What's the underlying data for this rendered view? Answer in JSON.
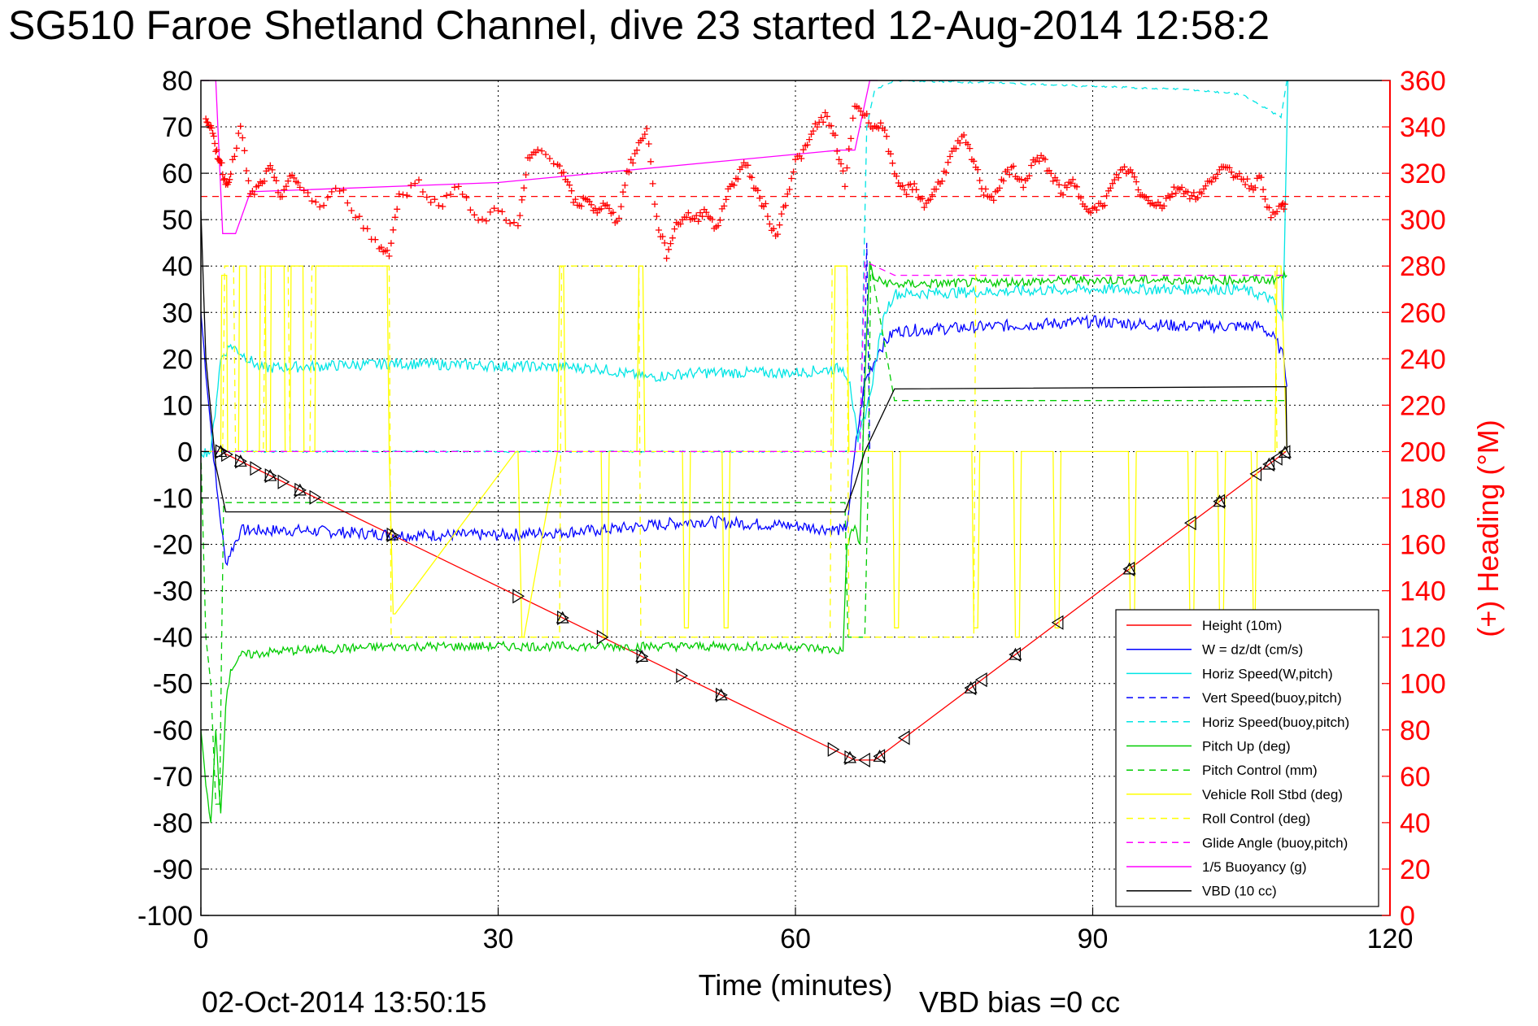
{
  "chart_data": {
    "type": "line",
    "title": "SG510 Faroe Shetland Channel, dive 23 started 12-Aug-2014 12:58:2",
    "xlabel": "Time (minutes)",
    "ylabel_right": "(+) Heading (°M)",
    "footer_date": "02-Oct-2014 13:50:15",
    "footer_note": "VBD bias =0 cc",
    "xlim": [
      0,
      120
    ],
    "ylim_left": [
      -100,
      80
    ],
    "ylim_right": [
      0,
      360
    ],
    "x_ticks": [
      "0",
      "30",
      "60",
      "90",
      "120"
    ],
    "y_ticks_left": [
      "80",
      "70",
      "60",
      "50",
      "40",
      "30",
      "20",
      "10",
      "0",
      "-10",
      "-20",
      "-30",
      "-40",
      "-50",
      "-60",
      "-70",
      "-80",
      "-90",
      "-100"
    ],
    "y_ticks_right": [
      "360",
      "340",
      "320",
      "300",
      "280",
      "260",
      "240",
      "220",
      "200",
      "180",
      "160",
      "140",
      "120",
      "100",
      "80",
      "60",
      "40",
      "20",
      "0"
    ],
    "grid": true,
    "legend_position": "bottom-right",
    "legend": [
      {
        "label": "Height (10m)",
        "color": "#ff0000",
        "style": "solid"
      },
      {
        "label": "W = dz/dt (cm/s)",
        "color": "#0000ff",
        "style": "solid"
      },
      {
        "label": "Horiz Speed(W,pitch)",
        "color": "#00e5e5",
        "style": "solid"
      },
      {
        "label": "Vert Speed(buoy,pitch)",
        "color": "#0000ff",
        "style": "dashed"
      },
      {
        "label": "Horiz Speed(buoy,pitch)",
        "color": "#00e5e5",
        "style": "dashed"
      },
      {
        "label": "Pitch Up (deg)",
        "color": "#00cc00",
        "style": "solid"
      },
      {
        "label": "Pitch Control (mm)",
        "color": "#00cc00",
        "style": "dashed"
      },
      {
        "label": "Vehicle Roll Stbd (deg)",
        "color": "#ffff00",
        "style": "solid"
      },
      {
        "label": "Roll Control (deg)",
        "color": "#ffff00",
        "style": "dashed"
      },
      {
        "label": "Glide Angle (buoy,pitch)",
        "color": "#ff00ff",
        "style": "dashed"
      },
      {
        "label": "1/5 Buoyancy (g)",
        "color": "#ff00ff",
        "style": "solid"
      },
      {
        "label": "VBD (10 cc)",
        "color": "#000000",
        "style": "solid"
      }
    ],
    "series": [
      {
        "key": "height",
        "color": "#ff0000",
        "style": "solid",
        "x": [
          0,
          2,
          66,
          68,
          109.5
        ],
        "y": [
          0,
          0,
          -66.5,
          -66.5,
          0
        ]
      },
      {
        "key": "w",
        "color": "#0000ff",
        "style": "solid",
        "noise": 1.3,
        "x": [
          0,
          0.8,
          1.6,
          2.5,
          4,
          10,
          20,
          30,
          40,
          50,
          60,
          64.8,
          65.2,
          66,
          67,
          68.5,
          70,
          80,
          90,
          100,
          107,
          108.5,
          109.3,
          109.6
        ],
        "y": [
          30,
          10,
          -8,
          -24,
          -17,
          -17,
          -18,
          -18,
          -17,
          -15,
          -16,
          -17,
          -16,
          0,
          15,
          22,
          26,
          27,
          28,
          27,
          27,
          24,
          20,
          14
        ]
      },
      {
        "key": "horiz_w",
        "color": "#00e5e5",
        "style": "solid",
        "noise": 1.2,
        "x": [
          0,
          1,
          2,
          3,
          6,
          20,
          40,
          45,
          50,
          60,
          64.8,
          65.5,
          66.3,
          67.5,
          69,
          70,
          90,
          105,
          108,
          109.2,
          109.7
        ],
        "y": [
          0,
          0,
          20,
          23,
          18,
          19,
          18,
          16,
          17,
          17,
          18,
          15,
          2,
          12,
          30,
          34,
          35,
          35,
          33,
          28,
          80
        ]
      },
      {
        "key": "vert_buoy",
        "color": "#0000ff",
        "style": "dashed",
        "noise": 0,
        "x": [
          0,
          66.8,
          67.2,
          67.5
        ],
        "y": [
          0,
          0,
          45,
          0
        ]
      },
      {
        "key": "horiz_buoy",
        "color": "#00e5e5",
        "style": "dashed",
        "noise": 0.2,
        "x": [
          0,
          66.5,
          67.2,
          68,
          70,
          80,
          100,
          105,
          107.5,
          109,
          109.6
        ],
        "y": [
          0,
          0,
          70,
          78,
          80,
          79.5,
          78,
          77,
          74,
          72,
          80
        ]
      },
      {
        "key": "pitch",
        "color": "#00cc00",
        "style": "solid",
        "noise": 1.0,
        "x": [
          0,
          0.5,
          1,
          1.5,
          2,
          2.5,
          3,
          4,
          8,
          20,
          40,
          60,
          64.8,
          65.2,
          66,
          66.5,
          67,
          67.5,
          68,
          70,
          90,
          108,
          109.6
        ],
        "y": [
          -60,
          -72,
          -80,
          -60,
          -78,
          -55,
          -47,
          -44,
          -43,
          -42,
          -42,
          -42,
          -43,
          -20,
          -16,
          -20,
          15,
          41,
          37,
          36,
          37,
          37,
          38
        ]
      },
      {
        "key": "pitch_ctl",
        "color": "#00cc00",
        "style": "dashed",
        "noise": 0,
        "x": [
          0,
          0.5,
          1,
          1.5,
          1.9,
          2.1,
          2.3,
          2.7,
          65,
          65.3,
          67,
          67.3,
          67.6,
          70,
          109.6
        ],
        "y": [
          0,
          -40,
          -50,
          -76,
          -76,
          -40,
          -11,
          -11,
          -11,
          -40,
          -40,
          -11,
          40,
          11,
          11
        ]
      },
      {
        "key": "roll",
        "color": "#ffff00",
        "style": "solid",
        "noise": 0,
        "x": [
          0,
          2,
          2.1,
          2.6,
          2.7,
          3.8,
          3.9,
          4.6,
          4.7,
          5.9,
          6,
          6.5,
          6.6,
          7,
          7.1,
          8.4,
          8.5,
          9,
          9.1,
          10.3,
          10.4,
          11.5,
          11.6,
          18.8,
          19,
          19.4,
          19.6,
          31.8,
          32,
          32.4,
          32.6,
          36,
          36.2,
          36.6,
          36.8,
          40.4,
          40.6,
          41,
          41.2,
          44,
          44.2,
          44.6,
          44.8,
          48.6,
          48.8,
          49.2,
          49.4,
          52.6,
          52.8,
          53.2,
          53.4,
          63.8,
          64,
          65.2,
          65.4,
          69.8,
          70,
          70.4,
          70.6,
          77.8,
          78,
          78.4,
          78.6,
          82,
          82.2,
          82.6,
          82.8,
          86,
          86.2,
          86.6,
          86.8,
          93.6,
          93.8,
          94.2,
          94.4,
          99.6,
          99.8,
          100.2,
          100.4,
          102.6,
          102.8,
          103.2,
          103.4,
          106,
          106.2,
          106.4,
          106.6,
          108.4,
          108.6,
          109,
          109.6
        ],
        "y": [
          0,
          0,
          38,
          38,
          0,
          0,
          40,
          40,
          0,
          0,
          40,
          40,
          0,
          0,
          40,
          40,
          0,
          0,
          40,
          40,
          0,
          0,
          40,
          40,
          0,
          -35,
          -35,
          0,
          0,
          -40,
          -40,
          0,
          40,
          40,
          0,
          0,
          -40,
          -40,
          0,
          0,
          40,
          40,
          0,
          0,
          -38,
          -38,
          0,
          0,
          -38,
          -38,
          0,
          0,
          40,
          40,
          0,
          0,
          -38,
          -38,
          0,
          0,
          -38,
          -38,
          0,
          0,
          -40,
          -40,
          0,
          0,
          -38,
          -38,
          0,
          0,
          -38,
          -38,
          0,
          0,
          -35,
          -35,
          0,
          0,
          -35,
          -35,
          0,
          0,
          -35,
          -35,
          0,
          0,
          40,
          40,
          0
        ]
      },
      {
        "key": "roll_ctl",
        "color": "#ffff00",
        "style": "dashed",
        "noise": 0,
        "x": [
          0,
          2.2,
          2.4,
          3.3,
          3.5,
          6.3,
          6.5,
          8.8,
          9,
          11,
          11.2,
          19,
          19.2,
          36.2,
          36.4,
          44.2,
          44.4,
          63.5,
          63.7,
          65.2,
          65.4,
          78,
          78.2,
          108.4,
          108.6,
          109.6
        ],
        "y": [
          0,
          0,
          40,
          40,
          0,
          0,
          40,
          40,
          0,
          0,
          40,
          40,
          -40,
          -40,
          40,
          40,
          -40,
          -40,
          40,
          40,
          -40,
          -40,
          40,
          40,
          0,
          0
        ]
      },
      {
        "key": "glide",
        "color": "#ff00ff",
        "style": "dashed",
        "noise": 0,
        "x": [
          0,
          66.5,
          67,
          70,
          109.6
        ],
        "y": [
          0,
          0,
          41,
          38,
          38
        ]
      },
      {
        "key": "buoyancy",
        "color": "#ff00ff",
        "style": "solid",
        "noise": 0,
        "x": [
          0,
          1.5,
          2.2,
          3.5,
          5,
          30,
          64.5,
          66,
          67.5,
          68.3
        ],
        "y": [
          80,
          80,
          47,
          47,
          56,
          58,
          65,
          65,
          80,
          80
        ]
      },
      {
        "key": "vbd",
        "color": "#000000",
        "style": "solid",
        "noise": 0,
        "x": [
          0,
          0.5,
          1.5,
          2.5,
          65,
          66,
          67,
          70,
          109.5,
          109.6
        ],
        "y": [
          52,
          20,
          -3,
          -13,
          -13,
          -7,
          0,
          13.5,
          14,
          0
        ]
      }
    ],
    "heading": {
      "color": "#ff0000",
      "marker": "+",
      "reference": 310,
      "x": [
        0.5,
        1,
        1.5,
        2,
        2.5,
        3,
        4,
        5,
        6,
        7,
        8,
        9,
        10,
        12,
        14,
        16,
        18,
        19,
        20,
        22,
        24,
        26,
        28,
        30,
        32,
        33,
        34,
        36,
        37,
        38,
        39,
        40,
        41,
        42,
        43,
        44,
        45,
        46,
        47,
        48,
        49,
        50,
        51,
        52,
        53,
        54,
        55,
        56,
        57,
        58,
        59,
        60,
        61,
        62,
        63,
        64,
        65,
        66,
        67,
        68,
        69,
        70,
        71,
        72,
        73,
        74,
        75,
        76,
        77,
        78,
        79,
        80,
        81,
        82,
        83,
        84,
        85,
        86,
        87,
        88,
        89,
        90,
        91,
        92,
        93,
        94,
        95,
        96,
        97,
        98,
        99,
        100,
        101,
        102,
        103,
        104,
        105,
        106,
        107,
        108,
        109
      ],
      "y": [
        345,
        340,
        330,
        325,
        315,
        320,
        340,
        310,
        315,
        322,
        310,
        318,
        315,
        305,
        314,
        300,
        288,
        286,
        310,
        316,
        305,
        316,
        298,
        305,
        296,
        325,
        330,
        325,
        315,
        305,
        310,
        302,
        308,
        298,
        320,
        330,
        340,
        300,
        285,
        298,
        302,
        300,
        305,
        295,
        310,
        318,
        325,
        312,
        305,
        292,
        308,
        325,
        330,
        340,
        345,
        335,
        315,
        350,
        345,
        340,
        340,
        318,
        312,
        315,
        306,
        312,
        320,
        330,
        335,
        325,
        312,
        310,
        318,
        322,
        314,
        325,
        326,
        318,
        312,
        316,
        308,
        304,
        306,
        315,
        322,
        320,
        310,
        308,
        306,
        312,
        314,
        310,
        311,
        318,
        322,
        320,
        319,
        314,
        318,
        300,
        306
      ]
    }
  },
  "legend_ui": {
    "line_color": "#000000"
  }
}
